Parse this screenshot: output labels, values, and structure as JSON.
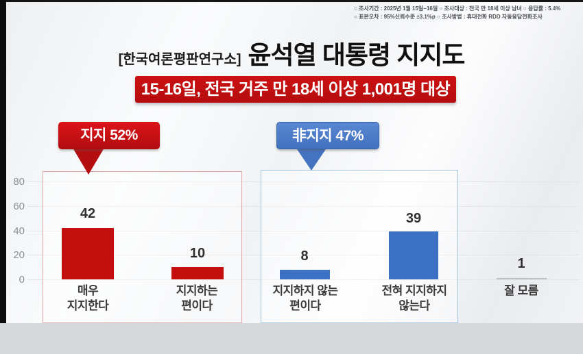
{
  "header": {
    "meta_line1": "○ 조사기간 : 2025년 1월 15일~16일  ○ 조사대상 : 전국 만 18세 이상 남녀  ○ 응답률 : 5.4%",
    "meta_line2": "○ 표본오차 : 95%신뢰수준 ±3.1%p  ○ 조사방법 : 휴대전화 RDD 자동응답전화조사",
    "source": "[한국여론평판연구소]",
    "title": "윤석열 대통령 지지도",
    "banner": "15-16일, 전국 거주 만 18세 이상 1,001명 대상"
  },
  "chart_data": {
    "type": "bar",
    "title": "윤석열 대통령 지지도",
    "source": "한국여론평판연구소",
    "categories": [
      "매우\n지지한다",
      "지지하는\n편이다",
      "지지하지 않는\n편이다",
      "전혀 지지하지\n않는다",
      "잘 모름"
    ],
    "values": [
      42,
      10,
      8,
      39,
      1
    ],
    "bar_colors": [
      "#c40f0f",
      "#c40f0f",
      "#3d71c3",
      "#3d71c3",
      "#bcbec0"
    ],
    "ylim": [
      0,
      80
    ],
    "yticks": [
      0,
      20,
      40,
      60,
      80
    ],
    "grid": true,
    "groups": [
      {
        "label": "지지 52%",
        "value": 52,
        "color": "#c8101a",
        "categories": [
          "매우 지지한다",
          "지지하는 편이다"
        ]
      },
      {
        "label": "非지지 47%",
        "value": 47,
        "color": "#4a7ccb",
        "categories": [
          "지지하지 않는 편이다",
          "전혀 지지하지 않는다"
        ]
      }
    ]
  }
}
